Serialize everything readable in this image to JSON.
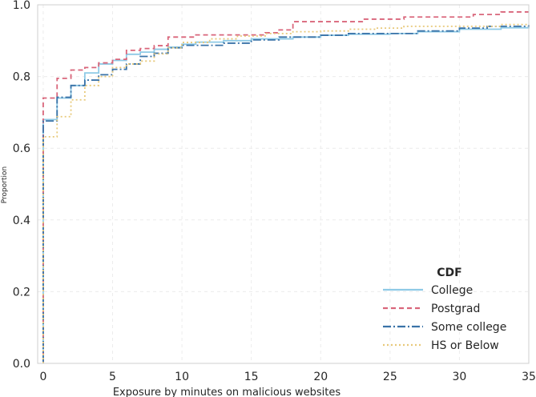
{
  "chart_data": {
    "type": "line",
    "step": true,
    "xlabel": "Exposure by minutes on malicious websites",
    "ylabel": "Proportion",
    "xlim": [
      -0.4,
      35
    ],
    "ylim": [
      0,
      1.0
    ],
    "xticks": [
      0,
      5,
      10,
      15,
      20,
      25,
      30,
      35
    ],
    "yticks": [
      0.0,
      0.2,
      0.4,
      0.6,
      0.8,
      1.0
    ],
    "xtick_labels": [
      "0",
      "5",
      "10",
      "15",
      "20",
      "25",
      "30",
      "35"
    ],
    "ytick_labels": [
      "0.0",
      "0.2",
      "0.4",
      "0.6",
      "0.8",
      "1.0"
    ],
    "grid": true,
    "legend": {
      "title": "CDF",
      "position": "bottom-right"
    },
    "series": [
      {
        "name": "College",
        "color": "#8ecae6",
        "dash": "solid",
        "x": [
          0,
          1,
          2,
          3,
          4,
          5,
          6,
          7,
          8,
          9,
          10,
          11,
          13,
          15,
          18,
          20,
          22,
          25,
          27,
          30,
          33,
          35
        ],
        "y": [
          0.68,
          0.74,
          0.775,
          0.81,
          0.835,
          0.845,
          0.862,
          0.868,
          0.876,
          0.882,
          0.89,
          0.896,
          0.9,
          0.905,
          0.91,
          0.915,
          0.918,
          0.92,
          0.925,
          0.932,
          0.936,
          0.938
        ]
      },
      {
        "name": "Postgrad",
        "color": "#d9667b",
        "dash": "6,4",
        "x": [
          0,
          1,
          2,
          3,
          4,
          5,
          6,
          7,
          8,
          9,
          11,
          16,
          17,
          18,
          23,
          26,
          31,
          33,
          35
        ],
        "y": [
          0.74,
          0.795,
          0.818,
          0.825,
          0.838,
          0.848,
          0.873,
          0.878,
          0.886,
          0.91,
          0.916,
          0.922,
          0.93,
          0.953,
          0.96,
          0.966,
          0.973,
          0.98,
          0.98
        ]
      },
      {
        "name": "Some college",
        "color": "#3a73a8",
        "dash": "10,3,2,3",
        "x": [
          0,
          1,
          2,
          3,
          4,
          5,
          6,
          7,
          8,
          9,
          10,
          11,
          13,
          15,
          17,
          20,
          22,
          25,
          27,
          30,
          32,
          35
        ],
        "y": [
          0.676,
          0.742,
          0.775,
          0.79,
          0.805,
          0.82,
          0.835,
          0.856,
          0.865,
          0.88,
          0.887,
          0.887,
          0.893,
          0.902,
          0.91,
          0.915,
          0.92,
          0.92,
          0.927,
          0.935,
          0.94,
          0.944
        ]
      },
      {
        "name": "HS or Below",
        "color": "#e8c97a",
        "dash": "2,3",
        "x": [
          0,
          1,
          2,
          3,
          4,
          5,
          6,
          7,
          8,
          9,
          10,
          12,
          14,
          16,
          18,
          20,
          22,
          24,
          26,
          30,
          33,
          35
        ],
        "y": [
          0.632,
          0.688,
          0.735,
          0.775,
          0.8,
          0.825,
          0.835,
          0.843,
          0.863,
          0.88,
          0.895,
          0.905,
          0.913,
          0.92,
          0.925,
          0.927,
          0.932,
          0.935,
          0.94,
          0.94,
          0.945,
          0.945
        ]
      }
    ]
  }
}
